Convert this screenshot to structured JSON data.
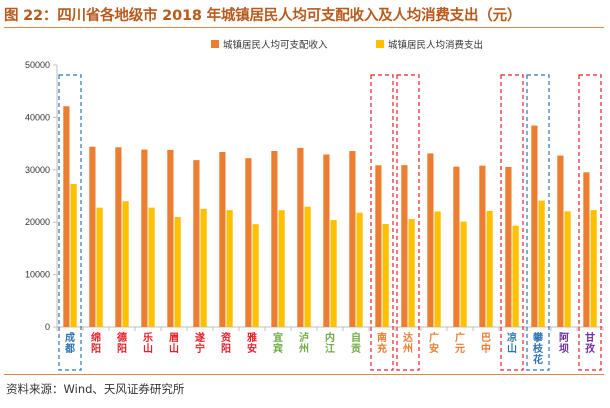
{
  "header": {
    "title": "图 22：四川省各地级市 2018 年城镇居民人均可支配收入及人均消费支出（元）"
  },
  "footer": {
    "source": "资料来源：Wind、天风证券研究所"
  },
  "colors": {
    "income": "#ed7d31",
    "consumption": "#ffc000",
    "group_chengdu": "#2e75b6",
    "group_south_sichuan": "#e8202a",
    "group_northeast": "#70ad47",
    "group_northeast_alt": "#ed7d31",
    "group_west": "#2e75b6",
    "group_ganzi": "#7030a0"
  },
  "chart_data": {
    "type": "bar",
    "categories": [
      "成都",
      "绵阳",
      "德阳",
      "乐山",
      "眉山",
      "遂宁",
      "资阳",
      "雅安",
      "宜宾",
      "泸州",
      "内江",
      "自贡",
      "南充",
      "达州",
      "广安",
      "广元",
      "巴中",
      "凉山",
      "攀枝花",
      "阿坝",
      "甘孜"
    ],
    "category_colors": [
      "#2e75b6",
      "#e8202a",
      "#e8202a",
      "#e8202a",
      "#e8202a",
      "#e8202a",
      "#e8202a",
      "#e8202a",
      "#70ad47",
      "#70ad47",
      "#70ad47",
      "#70ad47",
      "#ed7d31",
      "#ed7d31",
      "#ed7d31",
      "#ed7d31",
      "#ed7d31",
      "#2e75b6",
      "#2e75b6",
      "#7030a0",
      "#7030a0"
    ],
    "series": [
      {
        "name": "城镇居民人均可支配收入",
        "values": [
          42128,
          34411,
          34290,
          33854,
          33801,
          31844,
          33395,
          32218,
          33582,
          34177,
          32930,
          33574,
          30858,
          30883,
          33132,
          30602,
          30785,
          30548,
          38442,
          32721,
          29522
        ]
      },
      {
        "name": "城镇居民人均消费支出",
        "values": [
          27286,
          22777,
          23995,
          22781,
          20999,
          22547,
          22305,
          19616,
          22286,
          22955,
          20430,
          21806,
          19666,
          20592,
          22060,
          20104,
          22163,
          19339,
          24117,
          22078,
          22311
        ]
      }
    ],
    "ylim": [
      0,
      50000
    ],
    "yticks": [
      0,
      10000,
      20000,
      30000,
      40000,
      50000
    ],
    "highlight_boxes": [
      {
        "from": 0,
        "to": 0,
        "color": "#2e75b6"
      },
      {
        "from": 12,
        "to": 12,
        "color": "#e8202a"
      },
      {
        "from": 13,
        "to": 13,
        "color": "#e8202a"
      },
      {
        "from": 17,
        "to": 17,
        "color": "#e8202a"
      },
      {
        "from": 18,
        "to": 18,
        "color": "#2e75b6"
      },
      {
        "from": 20,
        "to": 20,
        "color": "#e8202a"
      }
    ],
    "legend_position": "top-center",
    "grid": false
  }
}
